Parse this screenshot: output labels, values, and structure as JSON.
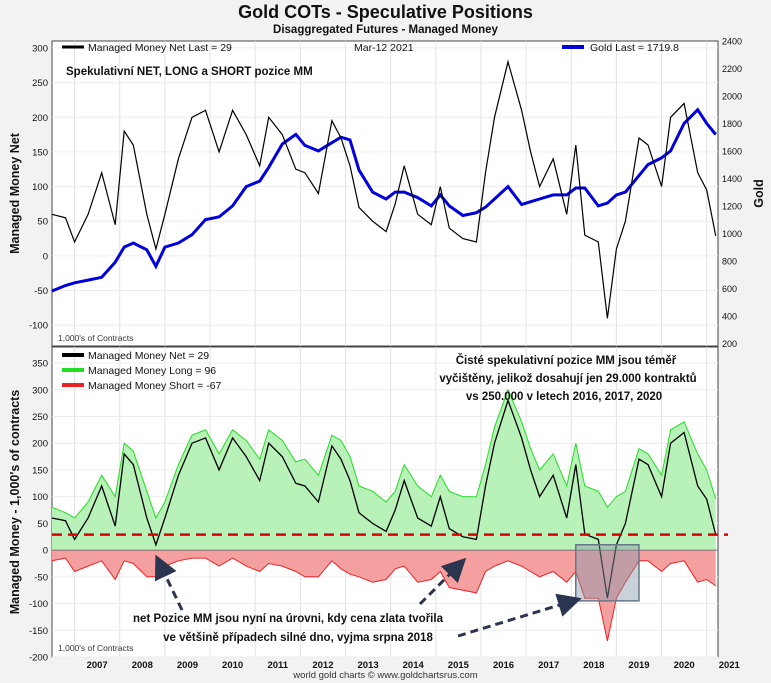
{
  "title": "Gold COTs - Speculative Positions",
  "subtitle": "Disaggregated Futures - Managed Money",
  "footer": "world gold charts © www.goldchartsrus.com",
  "colors": {
    "net": "#000000",
    "gold": "#0000dd",
    "long": "#22dd22",
    "short": "#ee2222",
    "long_fill": "#b9f2b9",
    "short_fill": "#f4a0a0",
    "ref_line": "#dd0000",
    "box": "#667788"
  },
  "chart_data": [
    {
      "type": "line",
      "ylabel": "Managed Money Net",
      "y2label": "Gold",
      "ylim": [
        -130,
        310
      ],
      "y2lim": [
        180,
        2400
      ],
      "y_ticks": [
        -100,
        -50,
        0,
        50,
        100,
        150,
        200,
        250,
        300
      ],
      "y2_ticks": [
        200,
        400,
        600,
        800,
        1000,
        1200,
        1400,
        1600,
        1800,
        2000,
        2200,
        2400
      ],
      "x_ticks": [
        "2007",
        "2008",
        "2009",
        "2010",
        "2011",
        "2012",
        "2013",
        "2014",
        "2015",
        "2016",
        "2017",
        "2018",
        "2019",
        "2020",
        "2021"
      ],
      "date_label": "Mar-12  2021",
      "legend": [
        {
          "name": "Managed Money Net",
          "text": "Managed Money Net   Last = 29",
          "color": "#000000"
        },
        {
          "name": "Gold",
          "text": "Gold Last = 1719.8",
          "color": "#0000dd"
        }
      ],
      "annotation": "Spekulativní NET, LONG a SHORT pozice MM",
      "units_note": "1,000's of Contracts",
      "series": [
        {
          "name": "Managed Money Net",
          "x": [
            2006.5,
            2006.8,
            2007.0,
            2007.3,
            2007.6,
            2007.9,
            2008.1,
            2008.3,
            2008.6,
            2008.8,
            2009.0,
            2009.3,
            2009.6,
            2009.9,
            2010.2,
            2010.5,
            2010.8,
            2011.1,
            2011.3,
            2011.6,
            2011.9,
            2012.1,
            2012.4,
            2012.7,
            2012.9,
            2013.1,
            2013.3,
            2013.6,
            2013.9,
            2014.1,
            2014.3,
            2014.6,
            2014.9,
            2015.1,
            2015.3,
            2015.6,
            2015.9,
            2016.1,
            2016.3,
            2016.6,
            2016.9,
            2017.1,
            2017.3,
            2017.6,
            2017.9,
            2018.1,
            2018.3,
            2018.6,
            2018.8,
            2019.0,
            2019.2,
            2019.5,
            2019.7,
            2020.0,
            2020.2,
            2020.5,
            2020.8,
            2021.0,
            2021.2
          ],
          "values": [
            60,
            55,
            20,
            60,
            120,
            45,
            180,
            160,
            60,
            10,
            60,
            140,
            200,
            210,
            150,
            210,
            175,
            130,
            200,
            175,
            125,
            120,
            90,
            195,
            170,
            130,
            70,
            50,
            35,
            75,
            130,
            60,
            45,
            100,
            40,
            25,
            20,
            120,
            200,
            280,
            210,
            150,
            100,
            140,
            60,
            160,
            30,
            20,
            -90,
            10,
            50,
            170,
            160,
            100,
            200,
            220,
            120,
            95,
            29
          ]
        },
        {
          "name": "Gold",
          "x": [
            2006.5,
            2006.8,
            2007.0,
            2007.3,
            2007.6,
            2007.9,
            2008.1,
            2008.3,
            2008.6,
            2008.8,
            2009.0,
            2009.3,
            2009.6,
            2009.9,
            2010.2,
            2010.5,
            2010.8,
            2011.1,
            2011.3,
            2011.6,
            2011.9,
            2012.1,
            2012.4,
            2012.7,
            2012.9,
            2013.1,
            2013.3,
            2013.6,
            2013.9,
            2014.1,
            2014.3,
            2014.6,
            2014.9,
            2015.1,
            2015.3,
            2015.6,
            2015.9,
            2016.1,
            2016.3,
            2016.6,
            2016.9,
            2017.1,
            2017.3,
            2017.6,
            2017.9,
            2018.1,
            2018.3,
            2018.6,
            2018.8,
            2019.0,
            2019.2,
            2019.5,
            2019.7,
            2020.0,
            2020.2,
            2020.5,
            2020.8,
            2021.0,
            2021.2
          ],
          "values": [
            580,
            620,
            640,
            660,
            680,
            790,
            900,
            930,
            880,
            760,
            900,
            930,
            990,
            1100,
            1120,
            1200,
            1340,
            1380,
            1480,
            1650,
            1720,
            1640,
            1600,
            1660,
            1700,
            1680,
            1460,
            1300,
            1250,
            1300,
            1300,
            1260,
            1200,
            1280,
            1200,
            1130,
            1150,
            1190,
            1250,
            1340,
            1210,
            1230,
            1250,
            1280,
            1280,
            1330,
            1330,
            1200,
            1220,
            1280,
            1300,
            1420,
            1500,
            1550,
            1600,
            1800,
            1900,
            1800,
            1719.8
          ]
        }
      ]
    },
    {
      "type": "area",
      "ylabel": "Managed Money - 1,000's of contracts",
      "ylim": [
        -200,
        380
      ],
      "y_ticks": [
        -200,
        -150,
        -100,
        -50,
        0,
        50,
        100,
        150,
        200,
        250,
        300,
        350
      ],
      "x_ticks": [
        "2007",
        "2008",
        "2009",
        "2010",
        "2011",
        "2012",
        "2013",
        "2014",
        "2015",
        "2016",
        "2017",
        "2018",
        "2019",
        "2020",
        "2021"
      ],
      "legend": [
        {
          "name": "Managed Money Net",
          "text": "Managed Money Net      = 29",
          "color": "#000000"
        },
        {
          "name": "Managed Money Long",
          "text": "Managed Money Long     = 96",
          "color": "#22dd22"
        },
        {
          "name": "Managed Money Short",
          "text": "Managed Money Short   = -67",
          "color": "#ee2222"
        }
      ],
      "reference_line": 29,
      "highlight_box": {
        "x": [
          2018.1,
          2019.5
        ],
        "y": [
          -95,
          10
        ]
      },
      "annotation_top": [
        "Čisté spekulativní pozice MM jsou téměř",
        "vyčištěny, jelikož dosahují jen 29.000 kontraktů",
        "vs 250.000 v letech 2016, 2017, 2020"
      ],
      "annotation_bottom": [
        "net Pozice MM jsou nyní na úrovni, kdy cena zlata tvořila",
        "ve většině případech silné dno, vyjma srpna 2018"
      ],
      "units_note": "1,000's of Contracts",
      "series": [
        {
          "name": "Managed Money Long",
          "x": [
            2006.5,
            2006.8,
            2007.0,
            2007.3,
            2007.6,
            2007.9,
            2008.1,
            2008.3,
            2008.6,
            2008.8,
            2009.0,
            2009.3,
            2009.6,
            2009.9,
            2010.2,
            2010.5,
            2010.8,
            2011.1,
            2011.3,
            2011.6,
            2011.9,
            2012.1,
            2012.4,
            2012.7,
            2012.9,
            2013.1,
            2013.3,
            2013.6,
            2013.9,
            2014.1,
            2014.3,
            2014.6,
            2014.9,
            2015.1,
            2015.3,
            2015.6,
            2015.9,
            2016.1,
            2016.3,
            2016.6,
            2016.9,
            2017.1,
            2017.3,
            2017.6,
            2017.9,
            2018.1,
            2018.3,
            2018.6,
            2018.8,
            2019.0,
            2019.2,
            2019.5,
            2019.7,
            2020.0,
            2020.2,
            2020.5,
            2020.8,
            2021.0,
            2021.2
          ],
          "values": [
            80,
            70,
            60,
            90,
            140,
            100,
            200,
            185,
            110,
            60,
            90,
            160,
            215,
            225,
            180,
            225,
            205,
            170,
            225,
            205,
            165,
            170,
            140,
            215,
            205,
            175,
            120,
            110,
            90,
            110,
            160,
            120,
            100,
            140,
            110,
            100,
            100,
            160,
            230,
            300,
            240,
            190,
            150,
            180,
            120,
            200,
            120,
            110,
            80,
            100,
            110,
            190,
            180,
            140,
            225,
            240,
            180,
            150,
            96
          ]
        },
        {
          "name": "Managed Money Short",
          "x": [
            2006.5,
            2006.8,
            2007.0,
            2007.3,
            2007.6,
            2007.9,
            2008.1,
            2008.3,
            2008.6,
            2008.8,
            2009.0,
            2009.3,
            2009.6,
            2009.9,
            2010.2,
            2010.5,
            2010.8,
            2011.1,
            2011.3,
            2011.6,
            2011.9,
            2012.1,
            2012.4,
            2012.7,
            2012.9,
            2013.1,
            2013.3,
            2013.6,
            2013.9,
            2014.1,
            2014.3,
            2014.6,
            2014.9,
            2015.1,
            2015.3,
            2015.6,
            2015.9,
            2016.1,
            2016.3,
            2016.6,
            2016.9,
            2017.1,
            2017.3,
            2017.6,
            2017.9,
            2018.1,
            2018.3,
            2018.6,
            2018.8,
            2019.0,
            2019.2,
            2019.5,
            2019.7,
            2020.0,
            2020.2,
            2020.5,
            2020.8,
            2021.0,
            2021.2
          ],
          "values": [
            -20,
            -15,
            -40,
            -30,
            -20,
            -55,
            -20,
            -25,
            -50,
            -50,
            -30,
            -20,
            -15,
            -15,
            -30,
            -15,
            -30,
            -40,
            -25,
            -30,
            -40,
            -50,
            -50,
            -20,
            -35,
            -45,
            -50,
            -60,
            -55,
            -35,
            -30,
            -60,
            -55,
            -40,
            -70,
            -75,
            -80,
            -40,
            -30,
            -20,
            -30,
            -40,
            -50,
            -40,
            -60,
            -40,
            -90,
            -90,
            -170,
            -90,
            -60,
            -20,
            -20,
            -40,
            -25,
            -20,
            -60,
            -55,
            -67
          ]
        },
        {
          "name": "Managed Money Net",
          "x": [
            2006.5,
            2006.8,
            2007.0,
            2007.3,
            2007.6,
            2007.9,
            2008.1,
            2008.3,
            2008.6,
            2008.8,
            2009.0,
            2009.3,
            2009.6,
            2009.9,
            2010.2,
            2010.5,
            2010.8,
            2011.1,
            2011.3,
            2011.6,
            2011.9,
            2012.1,
            2012.4,
            2012.7,
            2012.9,
            2013.1,
            2013.3,
            2013.6,
            2013.9,
            2014.1,
            2014.3,
            2014.6,
            2014.9,
            2015.1,
            2015.3,
            2015.6,
            2015.9,
            2016.1,
            2016.3,
            2016.6,
            2016.9,
            2017.1,
            2017.3,
            2017.6,
            2017.9,
            2018.1,
            2018.3,
            2018.6,
            2018.8,
            2019.0,
            2019.2,
            2019.5,
            2019.7,
            2020.0,
            2020.2,
            2020.5,
            2020.8,
            2021.0,
            2021.2
          ],
          "values": [
            60,
            55,
            20,
            60,
            120,
            45,
            180,
            160,
            60,
            10,
            60,
            140,
            200,
            210,
            150,
            210,
            175,
            130,
            200,
            175,
            125,
            120,
            90,
            195,
            170,
            130,
            70,
            50,
            35,
            75,
            130,
            60,
            45,
            100,
            40,
            25,
            20,
            120,
            200,
            280,
            210,
            150,
            100,
            140,
            60,
            160,
            30,
            20,
            -90,
            10,
            50,
            170,
            160,
            100,
            200,
            220,
            120,
            95,
            29
          ]
        }
      ]
    }
  ]
}
